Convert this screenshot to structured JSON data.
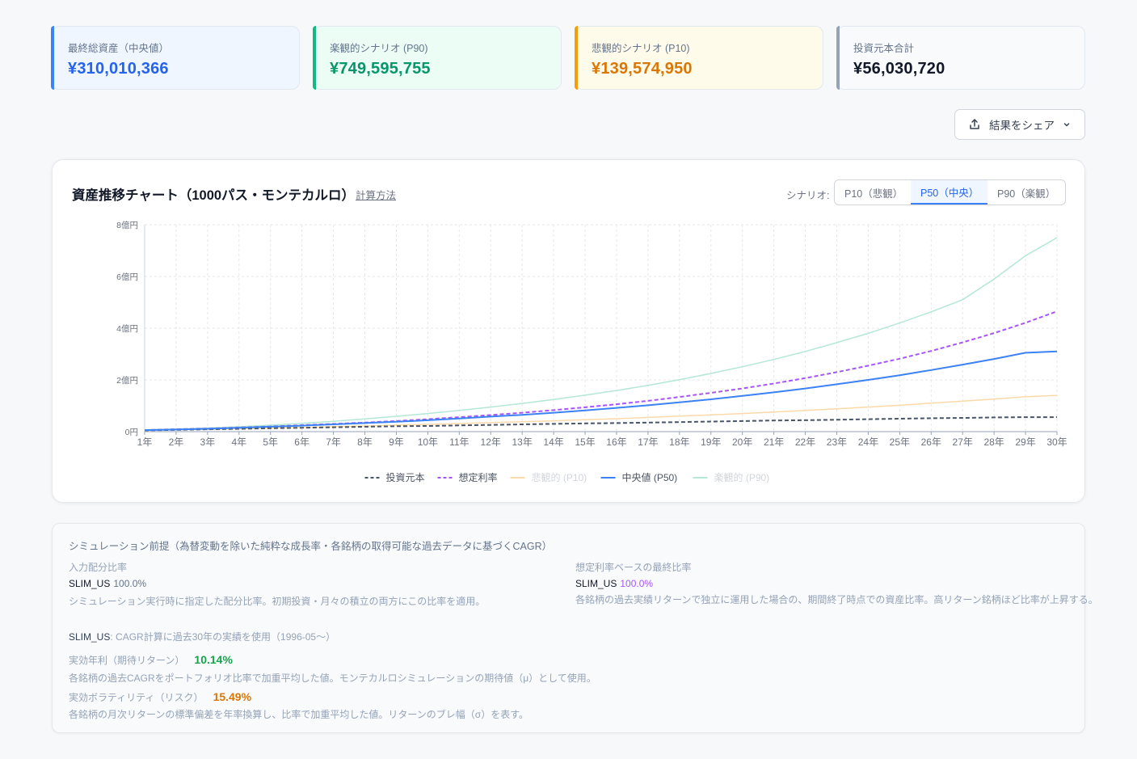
{
  "stats": [
    {
      "label": "最終総資産（中央値）",
      "value": "¥310,010,366"
    },
    {
      "label": "楽観的シナリオ (P90)",
      "value": "¥749,595,755"
    },
    {
      "label": "悲観的シナリオ (P10)",
      "value": "¥139,574,950"
    },
    {
      "label": "投資元本合計",
      "value": "¥56,030,720"
    }
  ],
  "share": {
    "label": "結果をシェア",
    "icon": "share-icon"
  },
  "chart_card": {
    "title": "資産推移チャート（1000パス・モンテカルロ）",
    "calc_link": "計算方法",
    "scenario_label": "シナリオ:",
    "scenario_tabs": [
      "P10（悲観）",
      "P50（中央）",
      "P90（楽観）"
    ],
    "scenario_selected": "P50（中央）"
  },
  "chart_data": {
    "type": "line",
    "x": [
      "1年",
      "2年",
      "3年",
      "4年",
      "5年",
      "6年",
      "7年",
      "8年",
      "9年",
      "10年",
      "11年",
      "12年",
      "13年",
      "14年",
      "15年",
      "16年",
      "17年",
      "18年",
      "19年",
      "20年",
      "21年",
      "22年",
      "23年",
      "24年",
      "25年",
      "26年",
      "27年",
      "28年",
      "29年",
      "30年"
    ],
    "y_ticks": [
      "0円",
      "2億円",
      "4億円",
      "6億円",
      "8億円"
    ],
    "ylim": [
      0,
      8
    ],
    "y_unit": "億円",
    "grid": true,
    "legend_position": "bottom",
    "series": [
      {
        "name": "投資元本",
        "color": "#475569",
        "dash": true,
        "faded": false,
        "values": [
          0.05,
          0.07,
          0.09,
          0.11,
          0.13,
          0.15,
          0.17,
          0.19,
          0.21,
          0.22,
          0.24,
          0.26,
          0.28,
          0.3,
          0.32,
          0.33,
          0.35,
          0.37,
          0.39,
          0.41,
          0.43,
          0.44,
          0.46,
          0.48,
          0.5,
          0.52,
          0.53,
          0.55,
          0.56,
          0.56
        ]
      },
      {
        "name": "想定利率",
        "color": "#a855f7",
        "dash": true,
        "faded": false,
        "values": [
          0.06,
          0.09,
          0.12,
          0.16,
          0.2,
          0.25,
          0.3,
          0.35,
          0.41,
          0.48,
          0.56,
          0.64,
          0.73,
          0.83,
          0.94,
          1.06,
          1.19,
          1.34,
          1.5,
          1.67,
          1.86,
          2.07,
          2.3,
          2.55,
          2.82,
          3.12,
          3.45,
          3.81,
          4.21,
          4.65
        ]
      },
      {
        "name": "悲観的 (P10)",
        "color": "#fcd9a8",
        "dash": false,
        "faded": true,
        "values": [
          0.05,
          0.07,
          0.09,
          0.11,
          0.14,
          0.16,
          0.19,
          0.22,
          0.25,
          0.28,
          0.31,
          0.35,
          0.38,
          0.42,
          0.46,
          0.5,
          0.55,
          0.6,
          0.65,
          0.7,
          0.76,
          0.82,
          0.88,
          0.95,
          1.02,
          1.1,
          1.18,
          1.26,
          1.35,
          1.4
        ]
      },
      {
        "name": "中央値 (P50)",
        "color": "#3b82f6",
        "dash": false,
        "faded": false,
        "values": [
          0.06,
          0.08,
          0.11,
          0.15,
          0.19,
          0.23,
          0.28,
          0.33,
          0.38,
          0.44,
          0.51,
          0.58,
          0.65,
          0.73,
          0.82,
          0.92,
          1.02,
          1.13,
          1.25,
          1.38,
          1.52,
          1.67,
          1.83,
          2.0,
          2.18,
          2.38,
          2.59,
          2.81,
          3.05,
          3.1
        ]
      },
      {
        "name": "楽観的 (P90)",
        "color": "#b4e7d5",
        "dash": false,
        "faded": true,
        "values": [
          0.07,
          0.1,
          0.14,
          0.19,
          0.25,
          0.32,
          0.4,
          0.49,
          0.59,
          0.7,
          0.82,
          0.95,
          1.09,
          1.24,
          1.41,
          1.59,
          1.79,
          2.01,
          2.25,
          2.51,
          2.79,
          3.1,
          3.44,
          3.8,
          4.2,
          4.63,
          5.1,
          5.9,
          6.8,
          7.5
        ]
      }
    ]
  },
  "panel": {
    "heading": "シミュレーション前提（為替変動を除いた純粋な成長率・各銘柄の取得可能な過去データに基づくCAGR）",
    "left_title": "入力配分比率",
    "left_ticker": "SLIM_US",
    "left_pct": "100.0%",
    "left_desc": "シミュレーション実行時に指定した配分比率。初期投資・月々の積立の両方にこの比率を適用。",
    "right_title": "想定利率ベースの最終比率",
    "right_ticker": "SLIM_US",
    "right_pct": "100.0%",
    "right_desc": "各銘柄の過去実績リターンで独立に運用した場合の、期間終了時点での資産比率。高リターン銘柄ほど比率が上昇する。",
    "source_ticker": "SLIM_US",
    "source_text": ": CAGR計算に過去30年の実績を使用（1996-05〜）",
    "return_label": "実効年利（期待リターン）",
    "return_value": "10.14%",
    "return_desc": "各銘柄の過去CAGRをポートフォリオ比率で加重平均した値。モンテカルロシミュレーションの期待値（μ）として使用。",
    "vol_label": "実効ボラティリティ（リスク）",
    "vol_value": "15.49%",
    "vol_desc": "各銘柄の月次リターンの標準偏差を年率換算し、比率で加重平均した値。リターンのブレ幅（σ）を表す。"
  }
}
